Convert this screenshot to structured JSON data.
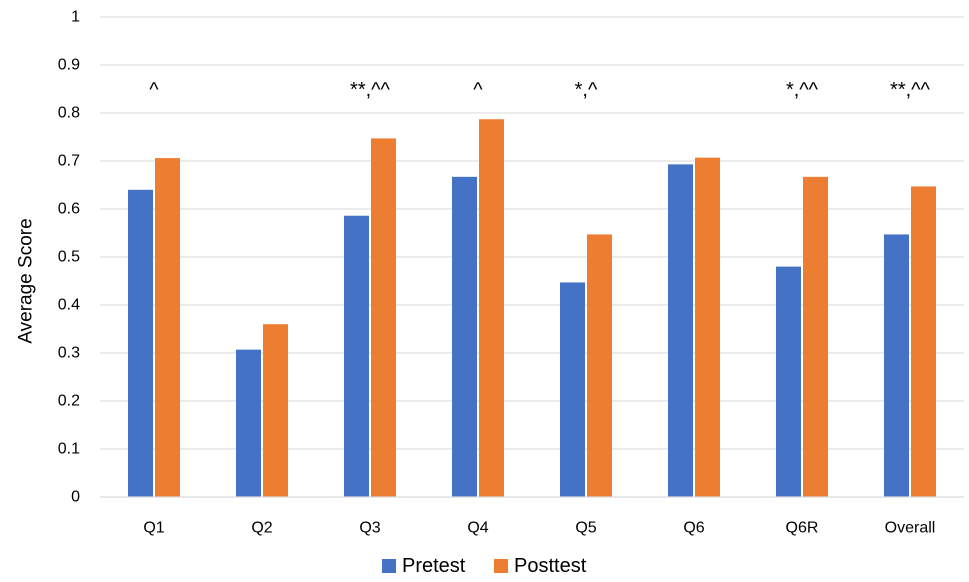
{
  "chart_data": {
    "type": "bar",
    "title": "",
    "xlabel": "",
    "ylabel": "Average Score",
    "ylim": [
      0,
      1
    ],
    "yticks": [
      "0",
      "0.1",
      "0.2",
      "0.3",
      "0.4",
      "0.5",
      "0.6",
      "0.7",
      "0.8",
      "0.9",
      "1"
    ],
    "categories": [
      "Q1",
      "Q2",
      "Q3",
      "Q4",
      "Q5",
      "Q6",
      "Q6R",
      "Overall"
    ],
    "series": [
      {
        "name": "Pretest",
        "color": "#4472C4",
        "values": [
          0.64,
          0.307,
          0.586,
          0.667,
          0.447,
          0.693,
          0.48,
          0.547
        ]
      },
      {
        "name": "Posttest",
        "color": "#ED7D31",
        "values": [
          0.706,
          0.36,
          0.747,
          0.787,
          0.547,
          0.707,
          0.667,
          0.647
        ]
      }
    ],
    "annotations": [
      "^",
      "",
      "**,^^",
      "^",
      "*,^",
      "",
      "*,^^",
      "**,^^"
    ],
    "grid": true,
    "legend_position": "bottom"
  }
}
